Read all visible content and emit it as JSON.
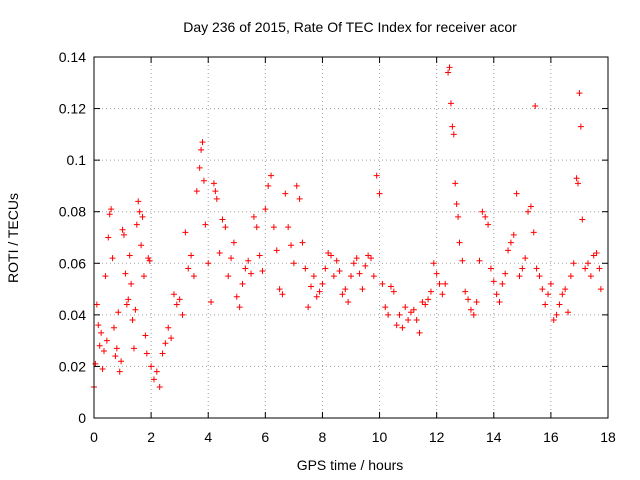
{
  "chart_data": {
    "type": "scatter",
    "title": "Day 236 of 2015, Rate Of TEC Index for receiver acor",
    "xlabel": "GPS time / hours",
    "ylabel": "ROTI / TECUs",
    "xlim": [
      0,
      18
    ],
    "ylim": [
      0,
      0.14
    ],
    "xticks": [
      0,
      2,
      4,
      6,
      8,
      10,
      12,
      14,
      16,
      18
    ],
    "xtick_labels": [
      "0",
      "2",
      "4",
      "6",
      "8",
      "10",
      "12",
      "14",
      "16",
      "18"
    ],
    "yticks": [
      0,
      0.02,
      0.04,
      0.06,
      0.08,
      0.1,
      0.12,
      0.14
    ],
    "ytick_labels": [
      "0",
      "0.02",
      "0.04",
      "0.06",
      "0.08",
      "0.1",
      "0.12",
      "0.14"
    ],
    "grid": true,
    "marker": "+",
    "color": "#ff0000",
    "series": [
      {
        "points": [
          [
            0.0,
            0.012
          ],
          [
            0.05,
            0.021
          ],
          [
            0.1,
            0.044
          ],
          [
            0.15,
            0.036
          ],
          [
            0.2,
            0.028
          ],
          [
            0.25,
            0.033
          ],
          [
            0.3,
            0.019
          ],
          [
            0.35,
            0.026
          ],
          [
            0.4,
            0.055
          ],
          [
            0.45,
            0.03
          ],
          [
            0.5,
            0.07
          ],
          [
            0.55,
            0.079
          ],
          [
            0.6,
            0.081
          ],
          [
            0.65,
            0.062
          ],
          [
            0.7,
            0.035
          ],
          [
            0.75,
            0.024
          ],
          [
            0.8,
            0.027
          ],
          [
            0.85,
            0.041
          ],
          [
            0.9,
            0.018
          ],
          [
            0.95,
            0.022
          ],
          [
            1.0,
            0.073
          ],
          [
            1.05,
            0.071
          ],
          [
            1.1,
            0.056
          ],
          [
            1.15,
            0.044
          ],
          [
            1.2,
            0.046
          ],
          [
            1.25,
            0.063
          ],
          [
            1.3,
            0.052
          ],
          [
            1.35,
            0.038
          ],
          [
            1.4,
            0.027
          ],
          [
            1.45,
            0.042
          ],
          [
            1.5,
            0.075
          ],
          [
            1.55,
            0.084
          ],
          [
            1.6,
            0.08
          ],
          [
            1.65,
            0.067
          ],
          [
            1.7,
            0.078
          ],
          [
            1.75,
            0.055
          ],
          [
            1.8,
            0.032
          ],
          [
            1.85,
            0.025
          ],
          [
            1.9,
            0.062
          ],
          [
            1.95,
            0.061
          ],
          [
            2.0,
            0.02
          ],
          [
            2.1,
            0.015
          ],
          [
            2.2,
            0.018
          ],
          [
            2.3,
            0.012
          ],
          [
            2.4,
            0.025
          ],
          [
            2.5,
            0.029
          ],
          [
            2.6,
            0.035
          ],
          [
            2.7,
            0.031
          ],
          [
            2.8,
            0.048
          ],
          [
            2.9,
            0.044
          ],
          [
            3.0,
            0.046
          ],
          [
            3.1,
            0.04
          ],
          [
            3.2,
            0.072
          ],
          [
            3.3,
            0.058
          ],
          [
            3.4,
            0.063
          ],
          [
            3.5,
            0.055
          ],
          [
            3.6,
            0.088
          ],
          [
            3.7,
            0.097
          ],
          [
            3.75,
            0.104
          ],
          [
            3.8,
            0.107
          ],
          [
            3.85,
            0.092
          ],
          [
            3.9,
            0.075
          ],
          [
            4.0,
            0.06
          ],
          [
            4.1,
            0.045
          ],
          [
            4.2,
            0.091
          ],
          [
            4.25,
            0.088
          ],
          [
            4.3,
            0.085
          ],
          [
            4.4,
            0.064
          ],
          [
            4.5,
            0.077
          ],
          [
            4.6,
            0.074
          ],
          [
            4.7,
            0.055
          ],
          [
            4.8,
            0.062
          ],
          [
            4.9,
            0.068
          ],
          [
            5.0,
            0.047
          ],
          [
            5.1,
            0.043
          ],
          [
            5.2,
            0.052
          ],
          [
            5.3,
            0.058
          ],
          [
            5.4,
            0.061
          ],
          [
            5.5,
            0.056
          ],
          [
            5.6,
            0.078
          ],
          [
            5.7,
            0.074
          ],
          [
            5.8,
            0.063
          ],
          [
            5.9,
            0.057
          ],
          [
            6.0,
            0.081
          ],
          [
            6.1,
            0.09
          ],
          [
            6.2,
            0.094
          ],
          [
            6.3,
            0.074
          ],
          [
            6.4,
            0.065
          ],
          [
            6.5,
            0.05
          ],
          [
            6.6,
            0.048
          ],
          [
            6.7,
            0.087
          ],
          [
            6.8,
            0.074
          ],
          [
            6.9,
            0.067
          ],
          [
            7.0,
            0.06
          ],
          [
            7.1,
            0.09
          ],
          [
            7.2,
            0.085
          ],
          [
            7.3,
            0.068
          ],
          [
            7.4,
            0.058
          ],
          [
            7.5,
            0.043
          ],
          [
            7.6,
            0.051
          ],
          [
            7.7,
            0.055
          ],
          [
            7.8,
            0.047
          ],
          [
            7.9,
            0.049
          ],
          [
            8.0,
            0.052
          ],
          [
            8.1,
            0.058
          ],
          [
            8.2,
            0.064
          ],
          [
            8.3,
            0.063
          ],
          [
            8.4,
            0.055
          ],
          [
            8.5,
            0.061
          ],
          [
            8.6,
            0.057
          ],
          [
            8.7,
            0.048
          ],
          [
            8.8,
            0.05
          ],
          [
            8.9,
            0.045
          ],
          [
            9.0,
            0.055
          ],
          [
            9.1,
            0.06
          ],
          [
            9.2,
            0.062
          ],
          [
            9.3,
            0.056
          ],
          [
            9.4,
            0.05
          ],
          [
            9.5,
            0.059
          ],
          [
            9.6,
            0.063
          ],
          [
            9.7,
            0.062
          ],
          [
            9.8,
            0.055
          ],
          [
            9.9,
            0.094
          ],
          [
            10.0,
            0.087
          ],
          [
            10.1,
            0.052
          ],
          [
            10.2,
            0.043
          ],
          [
            10.3,
            0.04
          ],
          [
            10.4,
            0.051
          ],
          [
            10.5,
            0.049
          ],
          [
            10.6,
            0.036
          ],
          [
            10.7,
            0.04
          ],
          [
            10.8,
            0.035
          ],
          [
            10.9,
            0.043
          ],
          [
            11.0,
            0.038
          ],
          [
            11.1,
            0.041
          ],
          [
            11.2,
            0.042
          ],
          [
            11.3,
            0.038
          ],
          [
            11.4,
            0.033
          ],
          [
            11.5,
            0.045
          ],
          [
            11.6,
            0.044
          ],
          [
            11.7,
            0.046
          ],
          [
            11.8,
            0.049
          ],
          [
            11.9,
            0.06
          ],
          [
            12.0,
            0.056
          ],
          [
            12.1,
            0.052
          ],
          [
            12.2,
            0.048
          ],
          [
            12.3,
            0.052
          ],
          [
            12.4,
            0.134
          ],
          [
            12.45,
            0.136
          ],
          [
            12.5,
            0.122
          ],
          [
            12.55,
            0.113
          ],
          [
            12.6,
            0.11
          ],
          [
            12.65,
            0.091
          ],
          [
            12.7,
            0.083
          ],
          [
            12.75,
            0.078
          ],
          [
            12.8,
            0.068
          ],
          [
            12.9,
            0.061
          ],
          [
            13.0,
            0.049
          ],
          [
            13.1,
            0.046
          ],
          [
            13.2,
            0.042
          ],
          [
            13.3,
            0.04
          ],
          [
            13.4,
            0.045
          ],
          [
            13.5,
            0.061
          ],
          [
            13.6,
            0.08
          ],
          [
            13.7,
            0.078
          ],
          [
            13.8,
            0.075
          ],
          [
            13.9,
            0.058
          ],
          [
            14.0,
            0.053
          ],
          [
            14.1,
            0.048
          ],
          [
            14.2,
            0.045
          ],
          [
            14.3,
            0.052
          ],
          [
            14.4,
            0.056
          ],
          [
            14.5,
            0.065
          ],
          [
            14.6,
            0.068
          ],
          [
            14.7,
            0.071
          ],
          [
            14.8,
            0.087
          ],
          [
            14.9,
            0.055
          ],
          [
            15.0,
            0.058
          ],
          [
            15.1,
            0.062
          ],
          [
            15.2,
            0.08
          ],
          [
            15.3,
            0.082
          ],
          [
            15.4,
            0.072
          ],
          [
            15.45,
            0.121
          ],
          [
            15.5,
            0.058
          ],
          [
            15.6,
            0.055
          ],
          [
            15.7,
            0.05
          ],
          [
            15.8,
            0.044
          ],
          [
            15.9,
            0.048
          ],
          [
            16.0,
            0.052
          ],
          [
            16.1,
            0.038
          ],
          [
            16.2,
            0.04
          ],
          [
            16.3,
            0.044
          ],
          [
            16.4,
            0.048
          ],
          [
            16.5,
            0.05
          ],
          [
            16.6,
            0.041
          ],
          [
            16.7,
            0.055
          ],
          [
            16.8,
            0.06
          ],
          [
            16.9,
            0.093
          ],
          [
            16.95,
            0.091
          ],
          [
            17.0,
            0.126
          ],
          [
            17.05,
            0.113
          ],
          [
            17.1,
            0.077
          ],
          [
            17.2,
            0.058
          ],
          [
            17.3,
            0.06
          ],
          [
            17.4,
            0.055
          ],
          [
            17.5,
            0.063
          ],
          [
            17.6,
            0.064
          ],
          [
            17.7,
            0.058
          ],
          [
            17.75,
            0.05
          ]
        ]
      }
    ]
  }
}
